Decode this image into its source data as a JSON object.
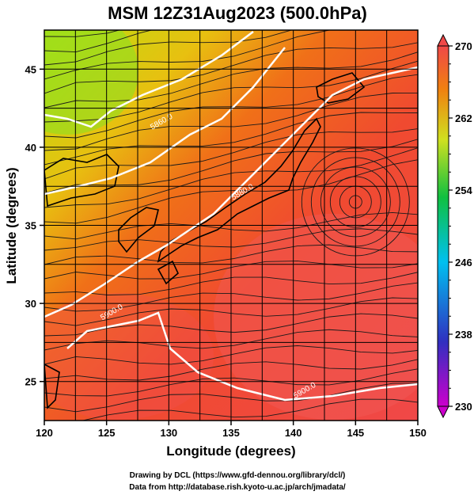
{
  "chart_data": {
    "type": "heatmap",
    "title": "MSM 12Z31Aug2023 (500.0hPa)",
    "xlabel": "Longitude (degrees)",
    "ylabel": "Latitude  (degrees)",
    "xlim": [
      120,
      150
    ],
    "ylim": [
      22.5,
      47.5
    ],
    "x_ticks": [
      120,
      125,
      130,
      135,
      140,
      145,
      150
    ],
    "y_ticks": [
      25,
      30,
      35,
      40,
      45
    ],
    "x_tick_labels": [
      "120",
      "125",
      "130",
      "135",
      "140",
      "145",
      "150"
    ],
    "y_tick_labels": [
      "25",
      "30",
      "35",
      "40",
      "45"
    ],
    "grid": true,
    "colorbar": {
      "min": 230,
      "max": 270,
      "labeled_ticks": [
        230,
        238,
        246,
        254,
        262,
        270
      ],
      "labels": [
        "230",
        "238",
        "246",
        "254",
        "262",
        "270"
      ],
      "position": "right",
      "colors": [
        "#cc00cc",
        "#2020c0",
        "#00c8e8",
        "#10c040",
        "#d0e020",
        "#f08010",
        "#f04040"
      ]
    },
    "contours": [
      {
        "label": "5860.0",
        "lon": 129.5,
        "lat": 41.5
      },
      {
        "label": "5880.0",
        "lon": 136.0,
        "lat": 37.0
      },
      {
        "label": "5900.0",
        "lon": 125.5,
        "lat": 29.3
      },
      {
        "label": "5900.0",
        "lon": 141.0,
        "lat": 24.3
      }
    ],
    "colormap_values": {
      "northwest_corner": 257,
      "north_central": 262,
      "central": 267,
      "southeast": 269
    }
  },
  "credits": {
    "line1": "Drawing by DCL (https://www.gfd-dennou.org/library/dcl/)",
    "line2": "Data from http://database.rish.kyoto-u.ac.jp/arch/jmadata/"
  }
}
